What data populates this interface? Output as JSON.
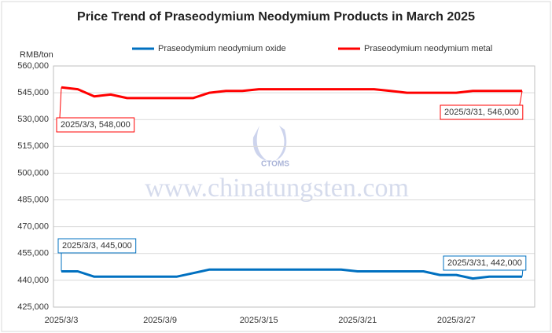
{
  "chart_data": {
    "type": "line",
    "title": "Price Trend of Praseodymium Neodymium Products in March 2025",
    "y_label": "RMB/ton",
    "categories": [
      "2025/3/3",
      null,
      null,
      null,
      null,
      null,
      "2025/3/9",
      null,
      null,
      null,
      null,
      null,
      "2025/3/15",
      null,
      null,
      null,
      null,
      null,
      "2025/3/21",
      null,
      null,
      null,
      null,
      null,
      "2025/3/27",
      null,
      null,
      null,
      null
    ],
    "series": [
      {
        "name": "Praseodymium neodymium oxide",
        "color": "#0070c0",
        "values": [
          445000,
          445000,
          442000,
          442000,
          442000,
          442000,
          442000,
          442000,
          444000,
          446000,
          446000,
          446000,
          446000,
          446000,
          446000,
          446000,
          446000,
          446000,
          445000,
          445000,
          445000,
          445000,
          445000,
          443000,
          443000,
          441000,
          442000,
          442000,
          442000
        ]
      },
      {
        "name": "Praseodymium neodymium metal",
        "color": "#ff0000",
        "values": [
          548000,
          547000,
          543000,
          544000,
          542000,
          542000,
          542000,
          542000,
          542000,
          545000,
          546000,
          546000,
          547000,
          547000,
          547000,
          547000,
          547000,
          547000,
          547000,
          547000,
          546000,
          545000,
          545000,
          545000,
          545000,
          546000,
          546000,
          546000,
          546000
        ]
      }
    ],
    "ylim": [
      425000,
      560000
    ],
    "yticks": [
      {
        "value": 425000,
        "label": "425,000"
      },
      {
        "value": 440000,
        "label": "440,000"
      },
      {
        "value": 455000,
        "label": "455,000"
      },
      {
        "value": 470000,
        "label": "470,000"
      },
      {
        "value": 485000,
        "label": "485,000"
      },
      {
        "value": 500000,
        "label": "500,000"
      },
      {
        "value": 515000,
        "label": "515,000"
      },
      {
        "value": 530000,
        "label": "530,000"
      },
      {
        "value": 545000,
        "label": "545,000"
      },
      {
        "value": 560000,
        "label": "560,000"
      }
    ],
    "grid": true,
    "annotations": [
      "2025/3/3, 548,000",
      "2025/3/31, 546,000",
      "2025/3/3, 445,000",
      "2025/3/31, 442,000"
    ],
    "watermark": [
      "www.chinatungsten.com",
      "CTOMS"
    ]
  }
}
